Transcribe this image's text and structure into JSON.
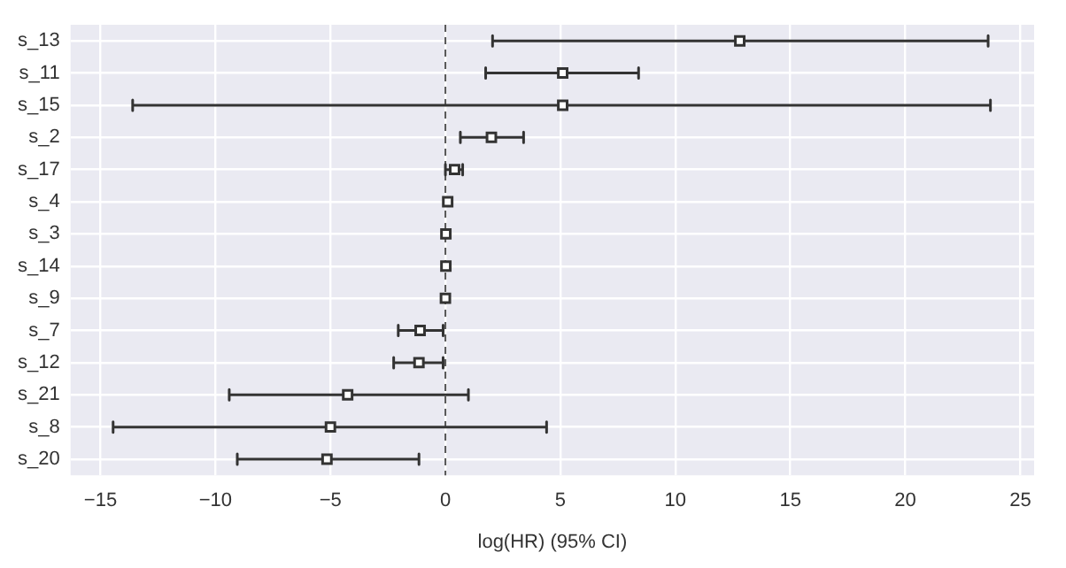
{
  "chart_data": {
    "type": "scatter",
    "orientation": "horizontal",
    "xlabel": "log(HR) (95% CI)",
    "categories": [
      "s_13",
      "s_11",
      "s_15",
      "s_2",
      "s_17",
      "s_4",
      "s_3",
      "s_14",
      "s_9",
      "s_7",
      "s_12",
      "s_21",
      "s_8",
      "s_20"
    ],
    "values": [
      12.8,
      5.1,
      5.1,
      2.0,
      0.4,
      0.1,
      0.02,
      0.02,
      0.0,
      -1.1,
      -1.15,
      -4.25,
      -5.0,
      -5.15
    ],
    "errors": [
      [
        2.05,
        23.6
      ],
      [
        1.75,
        8.4
      ],
      [
        -13.6,
        23.7
      ],
      [
        0.65,
        3.4
      ],
      [
        0.0,
        0.75
      ],
      null,
      null,
      null,
      null,
      [
        -2.05,
        -0.1
      ],
      [
        -2.25,
        -0.1
      ],
      [
        -9.4,
        1.0
      ],
      [
        -14.45,
        4.4
      ],
      [
        -9.05,
        -1.15
      ]
    ],
    "color": "#333333",
    "marker": "square",
    "xlim": [
      -16.3,
      25.6
    ],
    "xticks": [
      -15,
      -10,
      -5,
      0,
      5,
      10,
      15,
      20,
      25
    ],
    "grid": true,
    "ref_lines": [
      {
        "axis": "x",
        "value": 0,
        "color": "#555555",
        "line_style": "dashed"
      }
    ]
  }
}
